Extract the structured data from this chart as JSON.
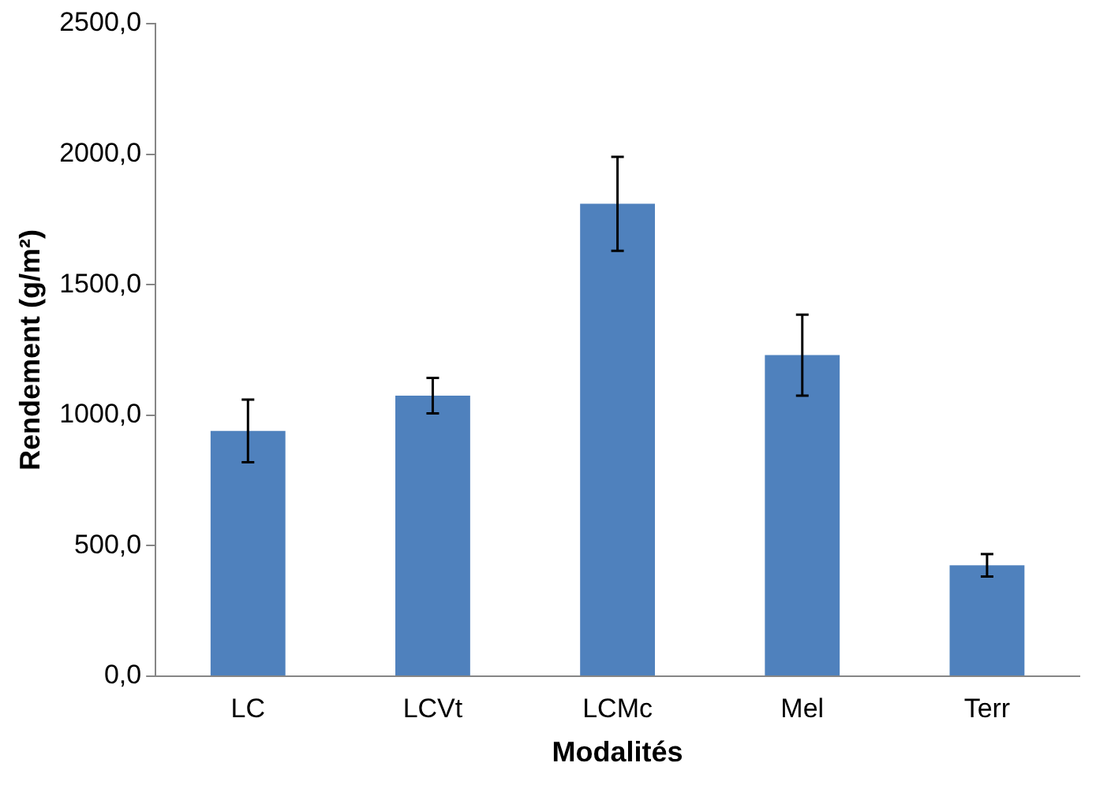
{
  "chart_data": {
    "type": "bar",
    "xlabel": "Modalités",
    "ylabel": "Rendement (g/m²)",
    "categories": [
      "LC",
      "LCVt",
      "LCMc",
      "Mel",
      "Terr"
    ],
    "values": [
      940,
      1075,
      1810,
      1230,
      425
    ],
    "errors": [
      120,
      68,
      180,
      155,
      43
    ],
    "color": "#4f81bd",
    "ylim": [
      0,
      2500
    ],
    "yticks": [
      {
        "value": 0,
        "label": "0,0"
      },
      {
        "value": 500,
        "label": "500,0"
      },
      {
        "value": 1000,
        "label": "1000,0"
      },
      {
        "value": 1500,
        "label": "1500,0"
      },
      {
        "value": 2000,
        "label": "2000,0"
      },
      {
        "value": 2500,
        "label": "2500,0"
      }
    ],
    "grid": false,
    "legend": false
  }
}
